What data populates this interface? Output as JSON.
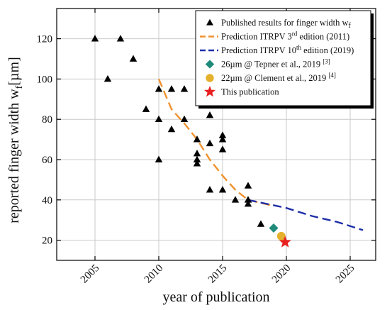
{
  "chart_data": {
    "type": "scatter",
    "xlabel": "year of publication",
    "ylabel_main": "reported finger width w",
    "ylabel_sub": "f",
    "ylabel_unit": "[µm]",
    "xlim": [
      2002,
      2027
    ],
    "ylim": [
      10,
      135
    ],
    "xticks": [
      2005,
      2010,
      2015,
      2020,
      2025
    ],
    "xtick_labels": [
      "2005",
      "2010",
      "2015",
      "2020",
      "2025"
    ],
    "yticks": [
      20,
      40,
      60,
      80,
      100,
      120
    ],
    "ytick_labels": [
      "20",
      "40",
      "60",
      "80",
      "100",
      "120"
    ],
    "grid": true,
    "legend_position": "top-right",
    "colors": {
      "published": "#000000",
      "itrpv3": "#f0922e",
      "itrpv10": "#1f2fa8",
      "tepner": "#1f8a7a",
      "clement": "#e5b12c",
      "this_publication": "#e82020",
      "grid": "#c9c9c9"
    },
    "series": [
      {
        "id": "published",
        "legend": {
          "main": "Published results for finger width w",
          "sub": "f"
        },
        "marker": "triangle",
        "points": [
          [
            2005,
            120
          ],
          [
            2006,
            100
          ],
          [
            2007,
            120
          ],
          [
            2008,
            110
          ],
          [
            2009,
            85
          ],
          [
            2010,
            95
          ],
          [
            2010,
            80
          ],
          [
            2010,
            60
          ],
          [
            2011,
            95
          ],
          [
            2011,
            75
          ],
          [
            2012,
            95
          ],
          [
            2012,
            80
          ],
          [
            2013,
            70
          ],
          [
            2013,
            63
          ],
          [
            2013,
            60
          ],
          [
            2013,
            58
          ],
          [
            2014,
            82
          ],
          [
            2014,
            68
          ],
          [
            2014,
            45
          ],
          [
            2015,
            72
          ],
          [
            2015,
            70
          ],
          [
            2015,
            65
          ],
          [
            2015,
            45
          ],
          [
            2016,
            40
          ],
          [
            2017,
            47
          ],
          [
            2017,
            40
          ],
          [
            2017,
            38
          ],
          [
            2018,
            28
          ]
        ]
      },
      {
        "id": "itrpv3",
        "legend": {
          "pre": "Prediction ITRPV   3",
          "sup": "rd",
          "post": " edition (2011)"
        },
        "line": "dashed",
        "points": [
          [
            2010,
            100
          ],
          [
            2011,
            85
          ],
          [
            2012,
            78
          ],
          [
            2013,
            70
          ],
          [
            2014,
            60
          ],
          [
            2015,
            52
          ],
          [
            2016,
            45
          ],
          [
            2017,
            40
          ],
          [
            2019,
            37
          ]
        ]
      },
      {
        "id": "itrpv10",
        "legend": {
          "pre": "Prediction ITRPV 10",
          "sup": "th",
          "post": " edition (2019)"
        },
        "line": "dashed",
        "points": [
          [
            2017,
            40
          ],
          [
            2020,
            36
          ],
          [
            2022,
            32
          ],
          [
            2024,
            29
          ],
          [
            2026,
            25
          ]
        ]
      },
      {
        "id": "tepner",
        "legend": {
          "pre": "26µm @ Tepner et al., 2019 ",
          "sup": "[3]",
          "post": ""
        },
        "marker": "diamond",
        "points": [
          [
            2019,
            26
          ]
        ]
      },
      {
        "id": "clement",
        "legend": {
          "pre": "22µm @ Clement et al., 2019 ",
          "sup": "[4]",
          "post": ""
        },
        "marker": "circle",
        "points": [
          [
            2019.6,
            22
          ]
        ]
      },
      {
        "id": "this_publication",
        "legend": {
          "pre": "This publication",
          "sup": "",
          "post": ""
        },
        "marker": "star",
        "points": [
          [
            2019.9,
            19
          ]
        ]
      }
    ]
  }
}
